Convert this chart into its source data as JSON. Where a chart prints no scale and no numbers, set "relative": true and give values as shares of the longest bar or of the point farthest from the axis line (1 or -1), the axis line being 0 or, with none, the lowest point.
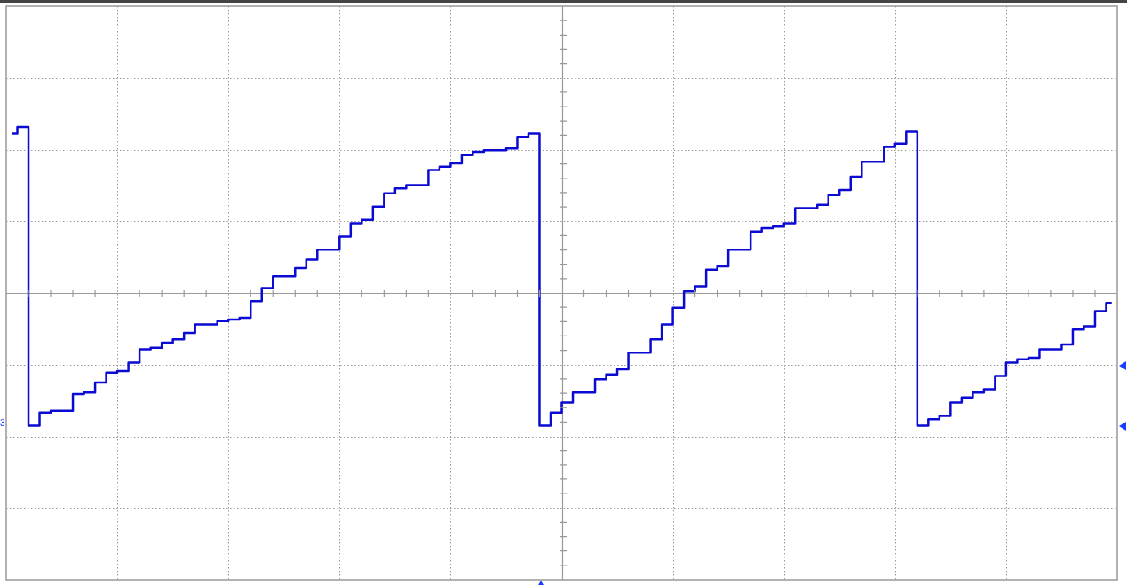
{
  "chart_data": {
    "type": "step",
    "relative": true,
    "grid": true,
    "line_style": "solid",
    "marker": "none",
    "categories": [
      null,
      null,
      null,
      null,
      null,
      null,
      null,
      null,
      null,
      null,
      null,
      null,
      null,
      null,
      null,
      null,
      null,
      null,
      null,
      null,
      null,
      null,
      null,
      null,
      null,
      null,
      null,
      null,
      null,
      null,
      null,
      null,
      null,
      null,
      null,
      null,
      null,
      null,
      null,
      null,
      null,
      null,
      null,
      null,
      null,
      null,
      null,
      null,
      null,
      null,
      null,
      null,
      null,
      null,
      null,
      null,
      null,
      null,
      null,
      null,
      null,
      null,
      null,
      null,
      null,
      null,
      null,
      null,
      null,
      null,
      null,
      null,
      null,
      null,
      null,
      null,
      null,
      null,
      null,
      null,
      null,
      null,
      null,
      null,
      null,
      null,
      null,
      null,
      null,
      null,
      null,
      null,
      null,
      null,
      null,
      null,
      null,
      null,
      null,
      null
    ],
    "series": [
      {
        "color": "#0a0ad2",
        "values": [
          0.96,
          1.0,
          -0.8,
          -0.72,
          -0.71,
          -0.71,
          -0.61,
          -0.6,
          -0.54,
          -0.48,
          -0.47,
          -0.42,
          -0.34,
          -0.33,
          -0.3,
          -0.28,
          -0.24,
          -0.19,
          -0.19,
          -0.17,
          -0.16,
          -0.15,
          -0.05,
          0.03,
          0.1,
          0.1,
          0.15,
          0.2,
          0.26,
          0.26,
          0.34,
          0.42,
          0.44,
          0.52,
          0.6,
          0.63,
          0.65,
          0.65,
          0.74,
          0.76,
          0.78,
          0.83,
          0.85,
          0.86,
          0.86,
          0.87,
          0.94,
          0.96,
          -0.8,
          -0.72,
          -0.66,
          -0.6,
          -0.6,
          -0.52,
          -0.49,
          -0.46,
          -0.36,
          -0.36,
          -0.28,
          -0.19,
          -0.09,
          0.01,
          0.04,
          0.14,
          0.16,
          0.26,
          0.26,
          0.37,
          0.39,
          0.4,
          0.42,
          0.51,
          0.51,
          0.53,
          0.59,
          0.62,
          0.7,
          0.79,
          0.79,
          0.88,
          0.9,
          0.97,
          -0.8,
          -0.76,
          -0.74,
          -0.66,
          -0.63,
          -0.6,
          -0.58,
          -0.5,
          -0.42,
          -0.4,
          -0.39,
          -0.34,
          -0.34,
          -0.31,
          -0.22,
          -0.2,
          -0.11,
          -0.06
        ]
      }
    ],
    "annotations": [
      "3"
    ]
  }
}
